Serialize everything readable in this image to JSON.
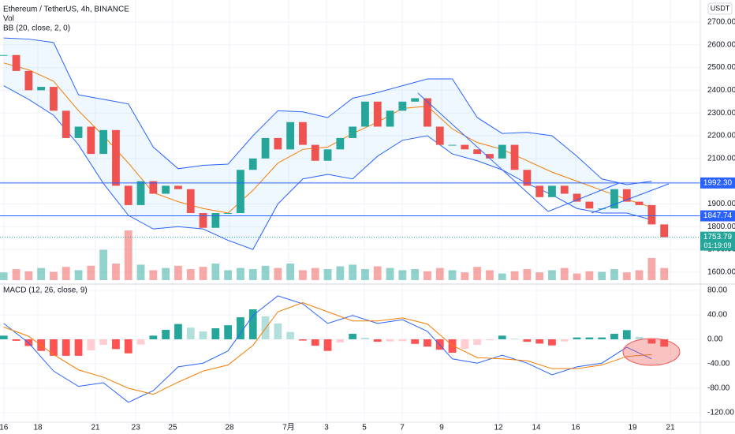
{
  "chart_data": {
    "type": "candlestick",
    "title": "Ethereum / TetherUS, 4h, BINANCE",
    "currency": "USDT",
    "up_color": "#26a69a",
    "down_color": "#ef5350",
    "x": [
      0,
      1,
      2,
      3,
      4,
      5,
      6,
      7,
      8,
      9,
      10,
      11,
      12,
      13,
      14,
      15,
      16,
      17,
      18,
      19,
      20,
      21,
      22,
      23,
      24,
      25,
      26,
      27,
      28,
      29,
      30,
      31,
      32,
      33,
      34,
      35,
      36,
      37,
      38,
      39,
      40,
      41,
      42,
      43,
      44,
      45,
      46,
      47,
      48,
      49,
      50,
      51,
      52,
      53
    ],
    "close": [
      2555,
      2485,
      2400,
      2415,
      2310,
      2190,
      2240,
      2120,
      2225,
      1980,
      1895,
      2000,
      1945,
      1980,
      1965,
      1860,
      1795,
      1860,
      1860,
      2050,
      2100,
      2190,
      2140,
      2260,
      2160,
      2090,
      2140,
      2190,
      2240,
      2350,
      2240,
      2310,
      2350,
      2365,
      2240,
      2160,
      2160,
      2140,
      2120,
      2100,
      2160,
      2050,
      1980,
      1930,
      1980,
      1945,
      1910,
      1880,
      1880,
      1965,
      1910,
      1895,
      1810,
      1753.79
    ],
    "xlim": [
      -0.3,
      55.9
    ],
    "xticks": [
      {
        "value": 0,
        "label": "16"
      },
      {
        "value": 2.74,
        "label": "18"
      },
      {
        "value": 7.36,
        "label": "21"
      },
      {
        "value": 10.6,
        "label": "23"
      },
      {
        "value": 13.56,
        "label": "25"
      },
      {
        "value": 18.12,
        "label": "28"
      },
      {
        "value": 22.86,
        "label": "7月"
      },
      {
        "value": 25.9,
        "label": "3"
      },
      {
        "value": 28.94,
        "label": "5"
      },
      {
        "value": 31.98,
        "label": "7"
      },
      {
        "value": 35.14,
        "label": "9"
      },
      {
        "value": 39.7,
        "label": "12"
      },
      {
        "value": 42.74,
        "label": "14"
      },
      {
        "value": 45.9,
        "label": "16"
      },
      {
        "value": 50.46,
        "label": "19"
      },
      {
        "value": 53.5,
        "label": "21"
      }
    ],
    "ylim": [
      1565,
      2797
    ],
    "yticks": [
      {
        "value": 1600,
        "label": "1600.00"
      },
      {
        "value": 1700,
        "label": "1700.00"
      },
      {
        "value": 1800,
        "label": "1800.00"
      },
      {
        "value": 1900,
        "label": "1900.00"
      },
      {
        "value": 2000,
        "label": "2000.00"
      },
      {
        "value": 2100,
        "label": "2100.00"
      },
      {
        "value": 2200,
        "label": "2200.00"
      },
      {
        "value": 2300,
        "label": "2300.00"
      },
      {
        "value": 2400,
        "label": "2400.00"
      },
      {
        "value": 2500,
        "label": "2500.00"
      },
      {
        "value": 2600,
        "label": "2600.00"
      },
      {
        "value": 2700,
        "label": "2700.00"
      }
    ],
    "hlines": [
      {
        "value": 1992.3,
        "label": "1992.30"
      },
      {
        "value": 1847.74,
        "label": "1847.74"
      }
    ],
    "hline_color": "#2962ff",
    "last_price": {
      "value": 1753.79,
      "label": "1753.79",
      "countdown": "01:19:09"
    },
    "bb": {
      "label": "BB (20, close, 2, 0)",
      "color": "#2962ff",
      "basis_color": "#f57c00",
      "x": [
        0,
        2,
        4,
        6,
        8,
        10,
        12,
        14,
        16,
        18,
        20,
        22,
        24,
        26,
        28,
        30,
        32,
        34,
        36,
        38,
        40,
        42,
        44,
        46,
        48,
        50,
        52
      ],
      "upper": [
        2630,
        2625,
        2610,
        2380,
        2360,
        2340,
        2150,
        2055,
        2070,
        2075,
        2200,
        2310,
        2305,
        2280,
        2365,
        2390,
        2420,
        2450,
        2450,
        2280,
        2210,
        2215,
        2200,
        2110,
        2010,
        1985,
        2000
      ],
      "basis": [
        2520,
        2490,
        2440,
        2310,
        2200,
        2080,
        1950,
        1910,
        1880,
        1860,
        1960,
        2080,
        2140,
        2150,
        2210,
        2260,
        2320,
        2330,
        2230,
        2170,
        2140,
        2090,
        2040,
        2000,
        1960,
        1920,
        1885
      ],
      "lower": [
        2420,
        2360,
        2290,
        2160,
        1990,
        1850,
        1790,
        1800,
        1790,
        1740,
        1700,
        1900,
        2010,
        2030,
        2010,
        2110,
        2180,
        2200,
        2120,
        2090,
        2050,
        1990,
        1940,
        1880,
        1860,
        1860,
        1830
      ]
    },
    "volume": {
      "label": "Vol",
      "values": [
        14,
        20,
        16,
        22,
        15,
        24,
        18,
        26,
        55,
        30,
        90,
        28,
        18,
        22,
        26,
        20,
        24,
        30,
        18,
        22,
        20,
        26,
        22,
        30,
        18,
        22,
        20,
        25,
        28,
        20,
        25,
        22,
        18,
        20,
        16,
        22,
        18,
        14,
        24,
        18,
        12,
        16,
        20,
        14,
        18,
        22,
        12,
        16,
        15,
        20,
        14,
        18,
        40,
        22
      ]
    },
    "macd": {
      "label": "MACD (12, 26, close, 9)",
      "ylim": [
        -135.5,
        90.3
      ],
      "yticks": [
        {
          "value": 80,
          "label": "80.00"
        },
        {
          "value": 40,
          "label": "40.00"
        },
        {
          "value": 0,
          "label": "0.00"
        },
        {
          "value": -40,
          "label": "-40.00"
        },
        {
          "value": -80,
          "label": "-80.00"
        },
        {
          "value": -120,
          "label": "-120.00"
        }
      ],
      "x": [
        0,
        2,
        4,
        6,
        8,
        10,
        12,
        14,
        16,
        18,
        20,
        22,
        24,
        26,
        28,
        30,
        32,
        34,
        36,
        38,
        40,
        42,
        44,
        46,
        48,
        50,
        52
      ],
      "macd_color": "#2962ff",
      "signal_color": "#f57c00",
      "macd": [
        26,
        -6,
        -52,
        -77,
        -71,
        -103,
        -84,
        -45,
        -39,
        -19,
        39,
        71,
        58,
        26,
        39,
        26,
        32,
        13,
        -32,
        -39,
        -26,
        -39,
        -58,
        -45,
        -39,
        -13,
        -32
      ],
      "signal": [
        20,
        5,
        -25,
        -50,
        -62,
        -80,
        -90,
        -70,
        -52,
        -42,
        -10,
        45,
        60,
        45,
        30,
        30,
        35,
        25,
        -10,
        -30,
        -32,
        -35,
        -48,
        -48,
        -42,
        -28,
        -25
      ],
      "histogram": [
        6,
        -2.5,
        -11,
        -19,
        -27,
        -27,
        -27,
        -18,
        -9,
        -16,
        -23,
        -8.5,
        6,
        15.5,
        25,
        19,
        13,
        18,
        23,
        36,
        49,
        37.5,
        26,
        12,
        -2,
        -10.5,
        -19,
        -5,
        9,
        2.5,
        -4,
        -3.5,
        -3,
        -7.5,
        -12,
        -17,
        -22,
        -15.5,
        -9,
        -1.5,
        6,
        1,
        -4,
        -7,
        -10,
        -3.5,
        3,
        3,
        3,
        9,
        15,
        4,
        -7,
        -12
      ]
    }
  }
}
